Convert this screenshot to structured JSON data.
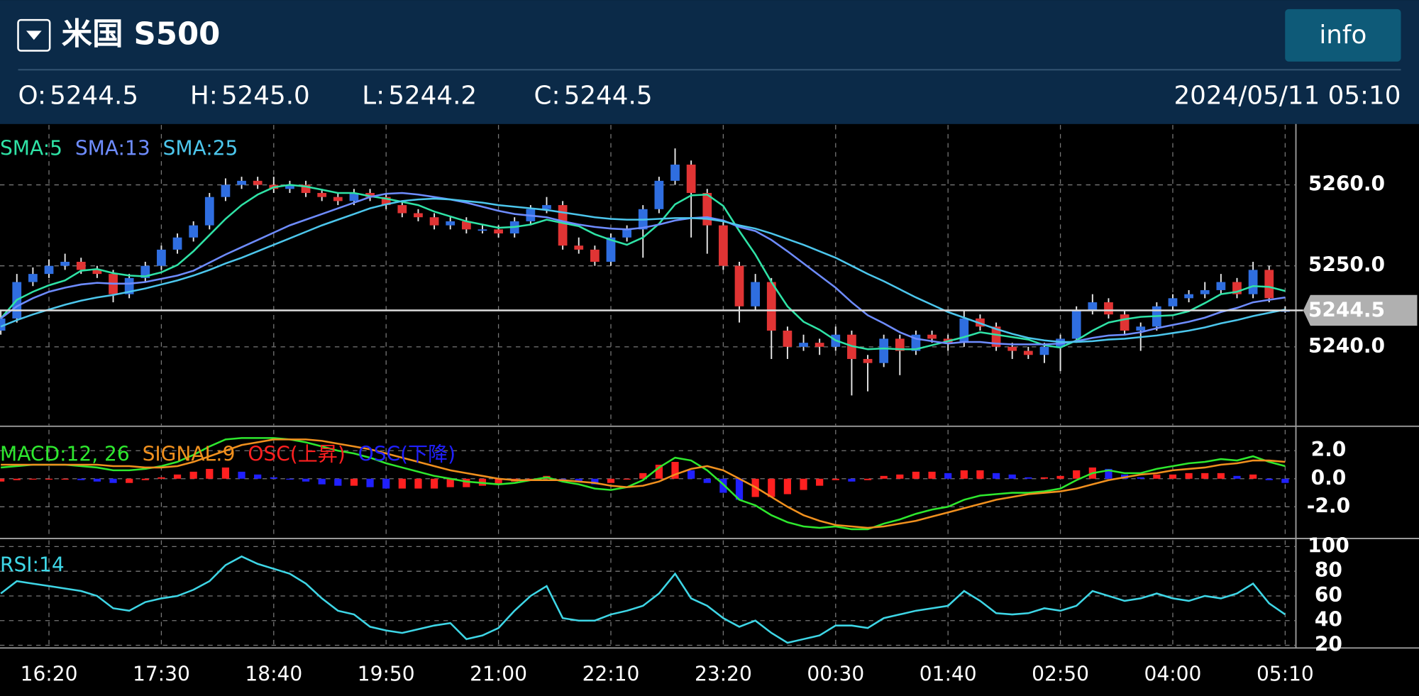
{
  "header": {
    "title": "米国 S500",
    "button": "info",
    "quote": [
      {
        "label": "O:",
        "value": "5244.5",
        "color": "#ffffff"
      },
      {
        "label": "H:",
        "value": "5245.0",
        "color": "#e8564e"
      },
      {
        "label": "L:",
        "value": "5244.2",
        "color": "#3fb0e8"
      },
      {
        "label": "C:",
        "value": "5244.5",
        "color": "#ffffff"
      }
    ],
    "datetime": "2024/05/11 05:10"
  },
  "chart_data": [
    {
      "type": "candlestick",
      "up_color": "#2f6ee0",
      "down_color": "#e03434",
      "grid": true,
      "xlim": [
        -0.05,
        80.67
      ],
      "xticks": [
        {
          "value": 3,
          "label": "16:20"
        },
        {
          "value": 10,
          "label": "17:30"
        },
        {
          "value": 17,
          "label": "18:40"
        },
        {
          "value": 24,
          "label": "19:50"
        },
        {
          "value": 31,
          "label": "21:00"
        },
        {
          "value": 38,
          "label": "22:10"
        },
        {
          "value": 45,
          "label": "23:20"
        },
        {
          "value": 52,
          "label": "00:30"
        },
        {
          "value": 59,
          "label": "01:40"
        },
        {
          "value": 66,
          "label": "02:50"
        },
        {
          "value": 73,
          "label": "04:00"
        },
        {
          "value": 80,
          "label": "05:10"
        }
      ],
      "ylim": [
        5230.3,
        5267.4
      ],
      "yticks": [
        {
          "value": 5240,
          "label": "5240.0"
        },
        {
          "value": 5250,
          "label": "5250.0"
        },
        {
          "value": 5260,
          "label": "5260.0"
        }
      ],
      "last_price": {
        "value": 5244.5,
        "label": "5244.5"
      },
      "open": [
        5242,
        5243.5,
        5248,
        5249,
        5250,
        5250.5,
        5249.5,
        5249,
        5246.5,
        5248.5,
        5250,
        5252,
        5253.5,
        5255,
        5258.5,
        5260,
        5260.5,
        5260,
        5259.5,
        5260,
        5259,
        5258.5,
        5258,
        5259,
        5258.5,
        5257.5,
        5256.5,
        5256,
        5255,
        5255.5,
        5254.5,
        5254.5,
        5254,
        5255.5,
        5257,
        5257.5,
        5252.5,
        5252,
        5250.5,
        5253.5,
        5254.5,
        5257,
        5260.5,
        5262.5,
        5259,
        5255,
        5250,
        5245,
        5248,
        5242,
        5240,
        5240.5,
        5240,
        5241.5,
        5238.5,
        5238,
        5241,
        5239.5,
        5241.5,
        5241,
        5240.5,
        5243.5,
        5242.5,
        5240,
        5239.5,
        5239,
        5240,
        5241,
        5244.5,
        5245.5,
        5244,
        5242,
        5242.5,
        5245,
        5246,
        5246.5,
        5247,
        5248,
        5246.5,
        5249.5,
        5244.5
      ],
      "high": [
        5244.5,
        5249,
        5249.8,
        5250.8,
        5251.5,
        5251,
        5250,
        5249.5,
        5249,
        5250.5,
        5252.5,
        5254,
        5255.5,
        5259,
        5260.8,
        5261,
        5261,
        5261,
        5260.5,
        5260.5,
        5259.5,
        5259,
        5259.5,
        5259.5,
        5259,
        5258,
        5257,
        5256.5,
        5256,
        5256,
        5255,
        5255,
        5256,
        5257.5,
        5258.5,
        5258,
        5253.5,
        5252.5,
        5254,
        5255,
        5257.5,
        5261,
        5264.5,
        5263,
        5259.5,
        5255.5,
        5250.5,
        5249,
        5248.5,
        5242.5,
        5241.5,
        5241,
        5242.5,
        5242,
        5239,
        5241.5,
        5241.5,
        5242,
        5242,
        5241.5,
        5244.5,
        5244,
        5243,
        5240.5,
        5240,
        5240.5,
        5241.5,
        5245,
        5246.5,
        5246,
        5244.5,
        5243,
        5245.5,
        5246.5,
        5247,
        5248,
        5249,
        5248.5,
        5250.5,
        5250,
        5245.0
      ],
      "low": [
        5241.5,
        5243,
        5247.5,
        5248.5,
        5249.5,
        5249,
        5248.5,
        5245.5,
        5246,
        5248,
        5249.5,
        5251.5,
        5253,
        5254.5,
        5258,
        5259.5,
        5259.5,
        5259,
        5259,
        5258.5,
        5258,
        5257.5,
        5257.5,
        5258,
        5257,
        5256,
        5255.5,
        5254.5,
        5254.5,
        5254,
        5254,
        5253.5,
        5253.5,
        5255,
        5256.5,
        5252,
        5251.5,
        5250,
        5250,
        5253,
        5251,
        5256.5,
        5260,
        5253.5,
        5251.5,
        5249.5,
        5243,
        5244.5,
        5238.5,
        5238.5,
        5239.5,
        5239,
        5239.5,
        5234,
        5234.5,
        5237.5,
        5236.5,
        5239,
        5240.5,
        5239.5,
        5240,
        5242,
        5239.5,
        5238.5,
        5238.5,
        5238,
        5237,
        5240.5,
        5244,
        5243.5,
        5241.5,
        5239.5,
        5242,
        5244.5,
        5245.5,
        5246,
        5246.5,
        5246,
        5246,
        5245.5,
        5244.2
      ],
      "close": [
        5243.5,
        5248,
        5249,
        5250,
        5250.5,
        5249.5,
        5249,
        5246.5,
        5248.5,
        5250,
        5252,
        5253.5,
        5255,
        5258.5,
        5260,
        5260.5,
        5260,
        5259.5,
        5260,
        5259,
        5258.5,
        5258,
        5259,
        5258.5,
        5257.5,
        5256.5,
        5256,
        5255,
        5255.5,
        5254.5,
        5254.5,
        5254,
        5255.5,
        5257,
        5257.5,
        5252.5,
        5252,
        5250.5,
        5253.5,
        5254.5,
        5257,
        5260.5,
        5262.5,
        5259,
        5255,
        5250,
        5245,
        5248,
        5242,
        5240,
        5240.5,
        5240,
        5241.5,
        5238.5,
        5238,
        5241,
        5239.5,
        5241.5,
        5241,
        5240.5,
        5243.5,
        5242.5,
        5240,
        5239.5,
        5239,
        5240,
        5241,
        5244.5,
        5245.5,
        5244,
        5242,
        5242.5,
        5245,
        5246,
        5246.5,
        5247,
        5248,
        5246.5,
        5249.5,
        5246,
        5244.5
      ],
      "series": [
        {
          "name": "SMA:5",
          "color": "#2fe3a6",
          "values": [
            5243.5,
            5245.8,
            5246.8,
            5247.6,
            5248.2,
            5249.4,
            5249.6,
            5249.1,
            5248.8,
            5248.7,
            5249.2,
            5250.1,
            5251.8,
            5253.8,
            5255.8,
            5257.5,
            5258.8,
            5259.7,
            5260.0,
            5259.8,
            5259.4,
            5259.0,
            5259.0,
            5258.6,
            5258.3,
            5257.9,
            5257.5,
            5256.7,
            5256.1,
            5255.5,
            5255.1,
            5254.7,
            5254.8,
            5255.1,
            5255.7,
            5255.3,
            5254.9,
            5253.9,
            5253.2,
            5252.6,
            5253.5,
            5255.2,
            5257.6,
            5258.7,
            5258.8,
            5257.4,
            5254.3,
            5251.4,
            5248.0,
            5245.0,
            5243.1,
            5242.1,
            5240.8,
            5240.1,
            5239.7,
            5239.8,
            5239.7,
            5239.7,
            5240.2,
            5240.7,
            5241.2,
            5241.8,
            5241.5,
            5241.2,
            5240.9,
            5240.2,
            5239.9,
            5240.8,
            5242.0,
            5243.0,
            5243.4,
            5243.7,
            5243.8,
            5243.9,
            5244.4,
            5245.4,
            5246.5,
            5246.8,
            5247.5,
            5247.4,
            5246.9
          ]
        },
        {
          "name": "SMA:13",
          "color": "#6e8cff",
          "values": [
            5243.5,
            5245,
            5246,
            5246.8,
            5247.3,
            5247.7,
            5247.9,
            5247.8,
            5247.8,
            5248,
            5248.4,
            5248.8,
            5249.4,
            5250.4,
            5251.4,
            5252.3,
            5253.2,
            5254.1,
            5255,
            5255.7,
            5256.4,
            5257.1,
            5257.8,
            5258.5,
            5258.9,
            5259,
            5258.8,
            5258.5,
            5258.2,
            5257.8,
            5257.3,
            5256.8,
            5256.4,
            5256.2,
            5256,
            5255.5,
            5255.1,
            5254.8,
            5254.6,
            5254.5,
            5254.7,
            5255.1,
            5255.6,
            5255.9,
            5256,
            5255.6,
            5254.8,
            5254.3,
            5253.2,
            5251.8,
            5250.3,
            5248.8,
            5247.3,
            5245.5,
            5243.9,
            5242.9,
            5241.8,
            5241,
            5240.7,
            5240.4,
            5240.6,
            5240.6,
            5240.4,
            5240.3,
            5240.3,
            5240.3,
            5240.4,
            5240.7,
            5241.1,
            5241.4,
            5241.5,
            5241.8,
            5242.3,
            5242.7,
            5243.1,
            5243.6,
            5244.3,
            5244.8,
            5245.5,
            5245.8,
            5246.1
          ]
        },
        {
          "name": "SMA:25",
          "color": "#4cc6ec",
          "values": [
            5242.5,
            5243.3,
            5244,
            5244.6,
            5245.2,
            5245.7,
            5246.1,
            5246.4,
            5246.8,
            5247.2,
            5247.7,
            5248.2,
            5248.8,
            5249.5,
            5250.3,
            5251,
            5251.8,
            5252.6,
            5253.4,
            5254.2,
            5255,
            5255.7,
            5256.4,
            5257.1,
            5257.6,
            5258,
            5258.2,
            5258.3,
            5258.2,
            5258,
            5257.8,
            5257.5,
            5257.3,
            5257.1,
            5256.9,
            5256.6,
            5256.3,
            5256,
            5255.8,
            5255.7,
            5255.7,
            5255.8,
            5255.9,
            5255.9,
            5255.8,
            5255.5,
            5255,
            5254.6,
            5254,
            5253.3,
            5252.6,
            5251.8,
            5251,
            5250,
            5249,
            5248.1,
            5247.1,
            5246.1,
            5245.2,
            5244.3,
            5243.6,
            5242.9,
            5242.2,
            5241.6,
            5241.1,
            5240.8,
            5240.6,
            5240.6,
            5240.7,
            5240.9,
            5241,
            5241.2,
            5241.4,
            5241.7,
            5242,
            5242.4,
            5242.9,
            5243.3,
            5243.8,
            5244.2,
            5244.6
          ]
        }
      ]
    },
    {
      "type": "macd",
      "ylim": [
        -4.13,
        3.48
      ],
      "yticks": [
        {
          "value": -2,
          "label": "-2.0"
        },
        {
          "value": 0,
          "label": "0.0"
        },
        {
          "value": 2,
          "label": "2.0"
        }
      ],
      "series": [
        {
          "name": "MACD:12, 26",
          "color": "#2ee82e",
          "values": [
            0.8,
            0.9,
            1.0,
            1.0,
            1.0,
            0.9,
            0.8,
            0.6,
            0.6,
            0.7,
            0.9,
            1.2,
            1.7,
            2.3,
            2.8,
            2.9,
            2.9,
            2.9,
            2.8,
            2.6,
            2.3,
            2.0,
            1.8,
            1.5,
            1.1,
            0.8,
            0.5,
            0.2,
            0.0,
            -0.2,
            -0.3,
            -0.4,
            -0.3,
            -0.1,
            0.1,
            -0.2,
            -0.4,
            -0.7,
            -0.8,
            -0.6,
            -0.1,
            0.8,
            1.5,
            1.3,
            0.6,
            -0.4,
            -1.5,
            -1.9,
            -2.6,
            -3.1,
            -3.4,
            -3.5,
            -3.4,
            -3.6,
            -3.6,
            -3.2,
            -2.9,
            -2.5,
            -2.2,
            -2.0,
            -1.5,
            -1.2,
            -1.1,
            -1.0,
            -1.0,
            -0.9,
            -0.7,
            -0.1,
            0.4,
            0.6,
            0.4,
            0.4,
            0.7,
            0.9,
            1.1,
            1.2,
            1.4,
            1.3,
            1.6,
            1.2,
            0.9
          ]
        },
        {
          "name": "SIGNAL:9",
          "color": "#f0901e",
          "values": [
            1.0,
            1.0,
            1.0,
            1.0,
            1.0,
            1.0,
            1.0,
            0.9,
            0.9,
            0.8,
            0.8,
            0.9,
            1.2,
            1.6,
            2.0,
            2.4,
            2.6,
            2.8,
            2.8,
            2.8,
            2.7,
            2.5,
            2.3,
            2.1,
            1.8,
            1.5,
            1.2,
            0.9,
            0.6,
            0.4,
            0.2,
            0.0,
            -0.1,
            -0.1,
            -0.1,
            -0.1,
            -0.2,
            -0.3,
            -0.5,
            -0.6,
            -0.5,
            -0.2,
            0.3,
            0.7,
            0.9,
            0.6,
            0.0,
            -0.6,
            -1.3,
            -2.0,
            -2.6,
            -3.0,
            -3.3,
            -3.4,
            -3.5,
            -3.4,
            -3.2,
            -3.0,
            -2.7,
            -2.4,
            -2.1,
            -1.8,
            -1.5,
            -1.3,
            -1.1,
            -1.0,
            -0.9,
            -0.7,
            -0.4,
            -0.1,
            0.1,
            0.3,
            0.4,
            0.6,
            0.7,
            0.8,
            1.0,
            1.1,
            1.3,
            1.3,
            1.2
          ]
        }
      ],
      "osc": {
        "names": [
          "OSC(上昇)",
          "OSC(下降)"
        ],
        "colors": [
          "#ff2020",
          "#2020ff"
        ],
        "values": [
          -0.2,
          -0.1,
          0,
          0,
          0,
          -0.1,
          -0.2,
          -0.3,
          -0.3,
          -0.1,
          0.1,
          0.3,
          0.5,
          0.7,
          0.8,
          0.5,
          0.3,
          0.1,
          0,
          -0.2,
          -0.4,
          -0.5,
          -0.5,
          -0.6,
          -0.7,
          -0.7,
          -0.7,
          -0.7,
          -0.6,
          -0.6,
          -0.5,
          -0.4,
          -0.2,
          0,
          0.2,
          -0.1,
          -0.2,
          -0.4,
          -0.3,
          0,
          0.4,
          1.0,
          1.2,
          0.6,
          -0.3,
          -1.0,
          -1.5,
          -1.3,
          -1.3,
          -1.1,
          -0.8,
          -0.5,
          -0.1,
          -0.2,
          -0.1,
          0.2,
          0.3,
          0.5,
          0.5,
          0.4,
          0.6,
          0.6,
          0.4,
          0.3,
          0.1,
          0.1,
          0.2,
          0.6,
          0.8,
          0.7,
          0.3,
          0.1,
          0.3,
          0.3,
          0.4,
          0.4,
          0.4,
          0.2,
          0.3,
          -0.1,
          -0.3
        ]
      }
    },
    {
      "type": "line",
      "ylim": [
        17.8,
        105.1
      ],
      "yticks": [
        20,
        40,
        60,
        80,
        100
      ],
      "series": [
        {
          "name": "RSI:14",
          "color": "#3ed6e6",
          "values": [
            62,
            72,
            70,
            68,
            66,
            64,
            60,
            50,
            48,
            55,
            58,
            60,
            65,
            72,
            85,
            92,
            86,
            82,
            78,
            70,
            58,
            48,
            45,
            35,
            32,
            30,
            33,
            36,
            38,
            25,
            28,
            34,
            48,
            60,
            68,
            42,
            40,
            40,
            45,
            48,
            52,
            62,
            78,
            58,
            52,
            42,
            35,
            40,
            30,
            22,
            25,
            28,
            36,
            36,
            34,
            42,
            45,
            48,
            50,
            52,
            64,
            56,
            46,
            45,
            46,
            50,
            48,
            52,
            64,
            60,
            56,
            58,
            62,
            58,
            56,
            60,
            58,
            62,
            70,
            54,
            45
          ]
        }
      ]
    }
  ]
}
